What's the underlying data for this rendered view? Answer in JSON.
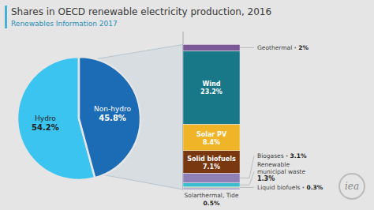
{
  "chart_data": [
    {
      "type": "pie",
      "title": "Shares in OECD renewable electricity production, 2016",
      "subtitle": "Renewables Information 2017",
      "categories": [
        "Hydro",
        "Non-hydro"
      ],
      "values": [
        54.2,
        45.8
      ],
      "value_labels": [
        "54.2%",
        "45.8%"
      ],
      "colors": [
        "#3bc4f0",
        "#1b6bb5"
      ],
      "data_labels": true,
      "annotations": [
        "iea"
      ]
    },
    {
      "type": "bar",
      "stacked": true,
      "categories": [
        null
      ],
      "series": [
        {
          "name": "Solarthermal, Tide",
          "color": "#9b8fc0",
          "values": [
            0.5
          ],
          "value_labels": [
            "0.5%"
          ]
        },
        {
          "name": "Liquid biofuels",
          "color": "#b5c8b0",
          "values": [
            0.3
          ],
          "value_labels": [
            "0.3%"
          ]
        },
        {
          "name": "Renewable municipal waste",
          "color": "#3bbccc",
          "values": [
            1.3
          ],
          "value_labels": [
            "1.3%"
          ]
        },
        {
          "name": "Biogases",
          "color": "#9080b8",
          "values": [
            3.1
          ],
          "value_labels": [
            "3.1%"
          ]
        },
        {
          "name": "Solid biofuels",
          "color": "#7a3810",
          "values": [
            7.1
          ],
          "value_labels": [
            "7.1%"
          ]
        },
        {
          "name": "Solar PV",
          "color": "#f0b429",
          "values": [
            8.4
          ],
          "value_labels": [
            "8.4%"
          ]
        },
        {
          "name": "Wind",
          "color": "#197888",
          "values": [
            23.2
          ],
          "value_labels": [
            "23.2%"
          ]
        },
        {
          "name": "Geothermal",
          "color": "#7b5898",
          "values": [
            2.0
          ],
          "value_labels": [
            "2%"
          ]
        }
      ],
      "ylim": [
        0,
        50
      ],
      "tick_labels": false,
      "data_labels": true
    }
  ]
}
